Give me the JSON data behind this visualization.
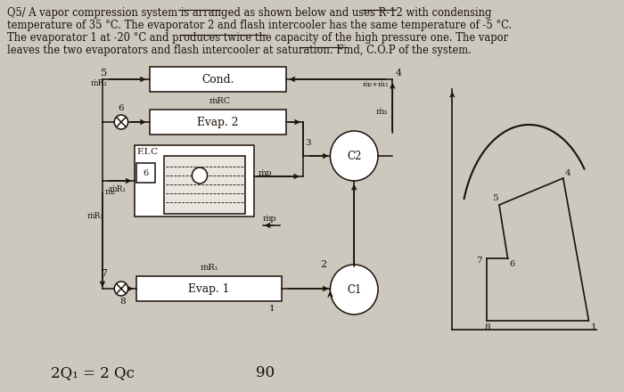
{
  "bg_color": "#cdc8be",
  "text_color": "#1a1008",
  "line1": "Q5/ A vapor compression system is arranged as shown below and uses R-12 with condensing",
  "line2": "temperature of 35 °C. The evaporator 2 and flash intercooler has the same temperature of -5 °C.",
  "line3": "The evaporator 1 at -20 °C and produces twice the capacity of the high pressure one. The vapor",
  "line4": "leaves the two evaporators and flash intercooler at saturation. Find, C.O.P of the system.",
  "cond_label": "Cond.",
  "evap2_label": "Evap. 2",
  "evap1_label": "Evap. 1",
  "fic_label": "F.I.C",
  "c1_label": "C1",
  "c2_label": "C2",
  "bottom1": "2Q₁ = 2 Qc",
  "bottom2": "90"
}
